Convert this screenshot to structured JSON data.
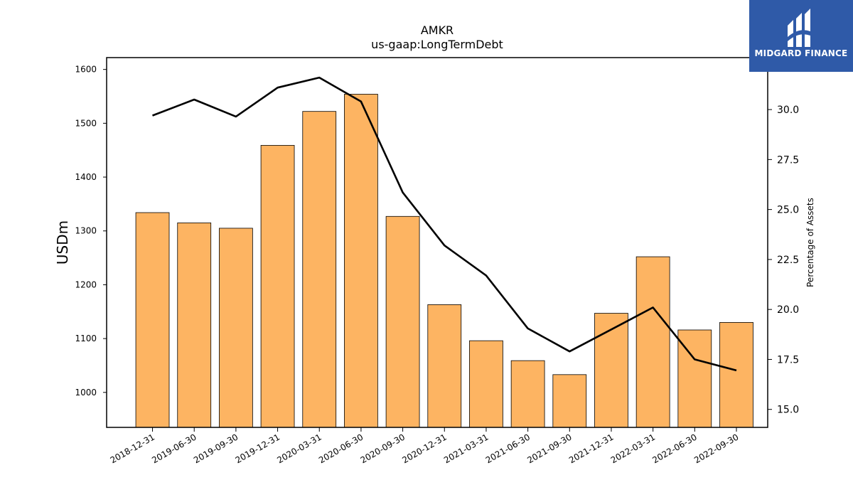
{
  "chart_data": {
    "type": "bar",
    "title": "AMKR",
    "subtitle": "us-gaap:LongTermDebt",
    "ylabel": "USDm",
    "y2label": "Percentage of Assets",
    "categories": [
      "2018-12-31",
      "2019-06-30",
      "2019-09-30",
      "2019-12-31",
      "2020-03-31",
      "2020-06-30",
      "2020-09-30",
      "2020-12-31",
      "2021-03-31",
      "2021-06-30",
      "2021-09-30",
      "2021-12-31",
      "2022-03-31",
      "2022-06-30",
      "2022-09-30"
    ],
    "series": [
      {
        "axis": "left",
        "kind": "bar",
        "color": "#fdb462",
        "values": [
          1334,
          1315,
          1305,
          1459,
          1522,
          1554,
          1327,
          1163,
          1096,
          1059,
          1033,
          1147,
          1252,
          1116,
          1130
        ]
      },
      {
        "axis": "right",
        "kind": "line",
        "color": "#000000",
        "values": [
          29.7,
          30.5,
          29.65,
          31.1,
          31.6,
          30.4,
          25.85,
          23.2,
          21.7,
          19.05,
          17.9,
          19.0,
          20.1,
          17.5,
          16.95
        ]
      }
    ],
    "ylim": [
      935,
      1622
    ],
    "y2lim": [
      14.1,
      32.6
    ],
    "yticks": [
      1000,
      1100,
      1200,
      1300,
      1400,
      1500,
      1600
    ],
    "y2ticks": [
      15.0,
      17.5,
      20.0,
      22.5,
      25.0,
      27.5,
      30.0
    ],
    "grid": false
  },
  "logo": {
    "text": "MIDGARD FINANCE",
    "color": "#2f5aa8"
  }
}
